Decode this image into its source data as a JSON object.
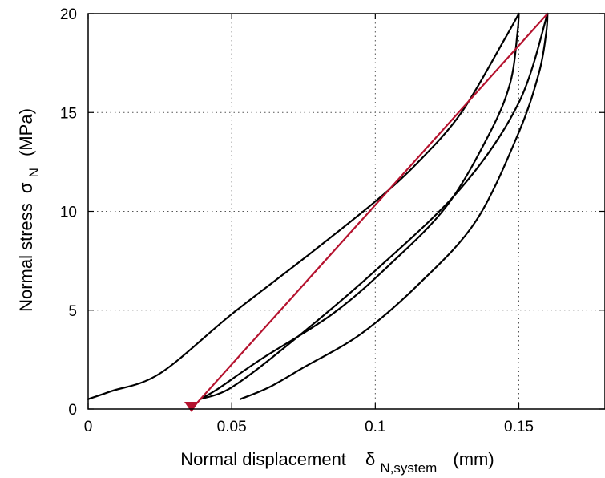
{
  "chart_data": {
    "type": "line",
    "xlabel": {
      "main": "Normal displacement",
      "symbol": "δ",
      "subscript": "N,system",
      "unit": "(mm)"
    },
    "ylabel": {
      "main": "Normal stress",
      "symbol": "σ",
      "subscript": "N",
      "unit": "(MPa)"
    },
    "xlim": [
      0,
      0.18
    ],
    "ylim": [
      0,
      20
    ],
    "xticks": [
      0,
      0.05,
      0.1,
      0.15
    ],
    "xtick_labels": [
      "0",
      "0.05",
      "0.1",
      "0.15"
    ],
    "yticks": [
      0,
      5,
      10,
      15,
      20
    ],
    "ytick_labels": [
      "0",
      "5",
      "10",
      "15",
      "20"
    ],
    "grid": true,
    "grid_style": "dotted",
    "colors": {
      "curve": "#000000",
      "fit_line": "#b5122e",
      "marker": "#b5122e",
      "grid": "#555555"
    },
    "series": [
      {
        "color": "#000000",
        "segments": [
          [
            [
              0,
              0.5
            ],
            [
              0.008,
              0.9
            ],
            [
              0.025,
              1.8
            ],
            [
              0.05,
              4.8
            ],
            [
              0.075,
              7.6
            ],
            [
              0.1,
              10.5
            ],
            [
              0.115,
              12.5
            ],
            [
              0.13,
              15.0
            ],
            [
              0.145,
              18.7
            ],
            [
              0.15,
              20
            ]
          ],
          [
            [
              0.15,
              20
            ],
            [
              0.1495,
              19.0
            ],
            [
              0.147,
              16.5
            ],
            [
              0.14,
              14.0
            ],
            [
              0.125,
              10.3
            ],
            [
              0.105,
              7.3
            ],
            [
              0.085,
              4.8
            ],
            [
              0.06,
              2.5
            ],
            [
              0.045,
              1.0
            ],
            [
              0.039,
              0.5
            ]
          ],
          [
            [
              0.039,
              0.5
            ],
            [
              0.05,
              1.1
            ],
            [
              0.07,
              3.3
            ],
            [
              0.1,
              7.0
            ],
            [
              0.13,
              11.2
            ],
            [
              0.15,
              15.5
            ],
            [
              0.16,
              20
            ]
          ],
          [
            [
              0.16,
              20
            ],
            [
              0.1595,
              19.0
            ],
            [
              0.157,
              17.0
            ],
            [
              0.15,
              14.0
            ],
            [
              0.135,
              9.5
            ],
            [
              0.115,
              6.3
            ],
            [
              0.095,
              3.8
            ],
            [
              0.075,
              2.1
            ],
            [
              0.063,
              1.1
            ],
            [
              0.053,
              0.5
            ]
          ]
        ]
      },
      {
        "color": "#b5122e",
        "segments": [
          [
            [
              0.036,
              0
            ],
            [
              0.16,
              20
            ]
          ]
        ]
      }
    ],
    "markers": [
      {
        "shape": "triangle-down",
        "x": 0.036,
        "y": 0,
        "color": "#b5122e"
      }
    ]
  }
}
